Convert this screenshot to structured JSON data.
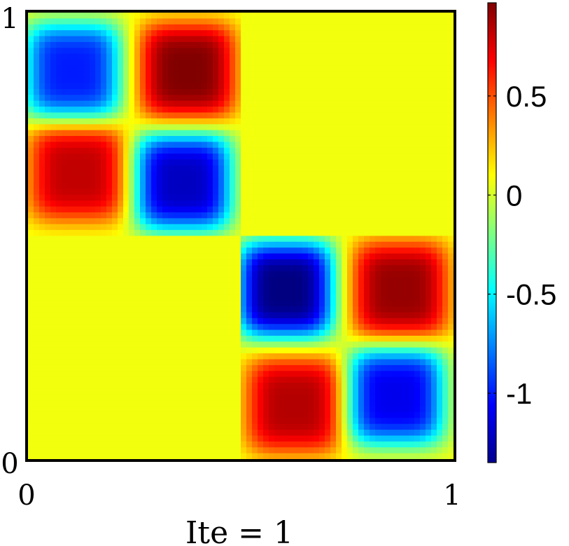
{
  "chart_data": {
    "type": "heatmap",
    "title": "",
    "xlabel": "Ite = 1",
    "ylabel": "",
    "xlim": [
      0,
      1
    ],
    "ylim": [
      0,
      1
    ],
    "x_ticks": [
      "0",
      "1"
    ],
    "y_ticks": [
      "0",
      "1"
    ],
    "colormap": "jet",
    "colorbar": {
      "range": [
        -1.35,
        0.97
      ],
      "ticks": [
        {
          "value": 0.5,
          "label": "0.5"
        },
        {
          "value": 0,
          "label": "0"
        },
        {
          "value": -0.5,
          "label": "-0.5"
        },
        {
          "value": -1,
          "label": "-1"
        }
      ]
    },
    "background_value": 0.07,
    "extrema": [
      {
        "x": 0.105,
        "y": 0.87,
        "value": -1.0
      },
      {
        "x": 0.375,
        "y": 0.87,
        "value": 0.97
      },
      {
        "x": 0.115,
        "y": 0.64,
        "value": 0.82
      },
      {
        "x": 0.365,
        "y": 0.62,
        "value": -1.2
      },
      {
        "x": 0.605,
        "y": 0.38,
        "value": -1.35
      },
      {
        "x": 0.875,
        "y": 0.38,
        "value": 0.92
      },
      {
        "x": 0.625,
        "y": 0.12,
        "value": 0.85
      },
      {
        "x": 0.865,
        "y": 0.14,
        "value": -1.1
      }
    ]
  }
}
